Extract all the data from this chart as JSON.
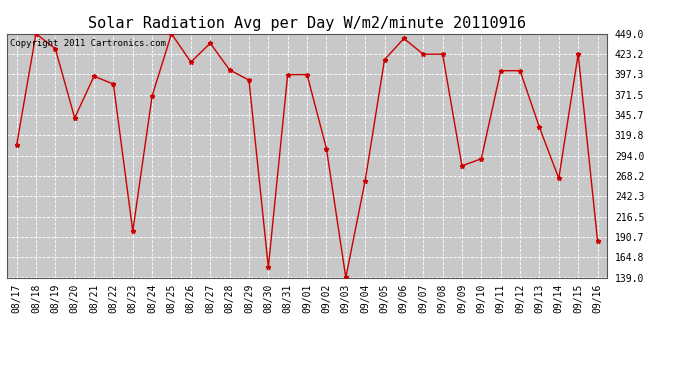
{
  "title": "Solar Radiation Avg per Day W/m2/minute 20110916",
  "copyright_text": "Copyright 2011 Cartronics.com",
  "x_labels": [
    "08/17",
    "08/18",
    "08/19",
    "08/20",
    "08/21",
    "08/22",
    "08/23",
    "08/24",
    "08/25",
    "08/26",
    "08/27",
    "08/28",
    "08/29",
    "08/30",
    "08/31",
    "09/01",
    "09/02",
    "09/03",
    "09/04",
    "09/05",
    "09/06",
    "09/07",
    "09/08",
    "09/09",
    "09/10",
    "09/11",
    "09/12",
    "09/13",
    "09/14",
    "09/15",
    "09/16"
  ],
  "y_values": [
    307.0,
    449.0,
    430.0,
    342.0,
    395.0,
    385.0,
    198.0,
    370.0,
    449.0,
    413.0,
    437.0,
    403.0,
    390.0,
    152.0,
    397.0,
    397.0,
    303.0,
    139.0,
    262.0,
    416.0,
    443.0,
    423.0,
    423.0,
    281.0,
    290.0,
    402.0,
    402.0,
    330.0,
    265.0,
    423.0,
    186.0
  ],
  "line_color": "#cc0000",
  "marker_color": "#cc0000",
  "bg_color": "#ffffff",
  "plot_bg_color": "#c8c8c8",
  "grid_color": "#ffffff",
  "y_min": 139.0,
  "y_max": 449.0,
  "y_ticks": [
    139.0,
    164.8,
    190.7,
    216.5,
    242.3,
    268.2,
    294.0,
    319.8,
    345.7,
    371.5,
    397.3,
    423.2,
    449.0
  ],
  "title_fontsize": 11,
  "tick_fontsize": 7,
  "copyright_fontsize": 6.5
}
